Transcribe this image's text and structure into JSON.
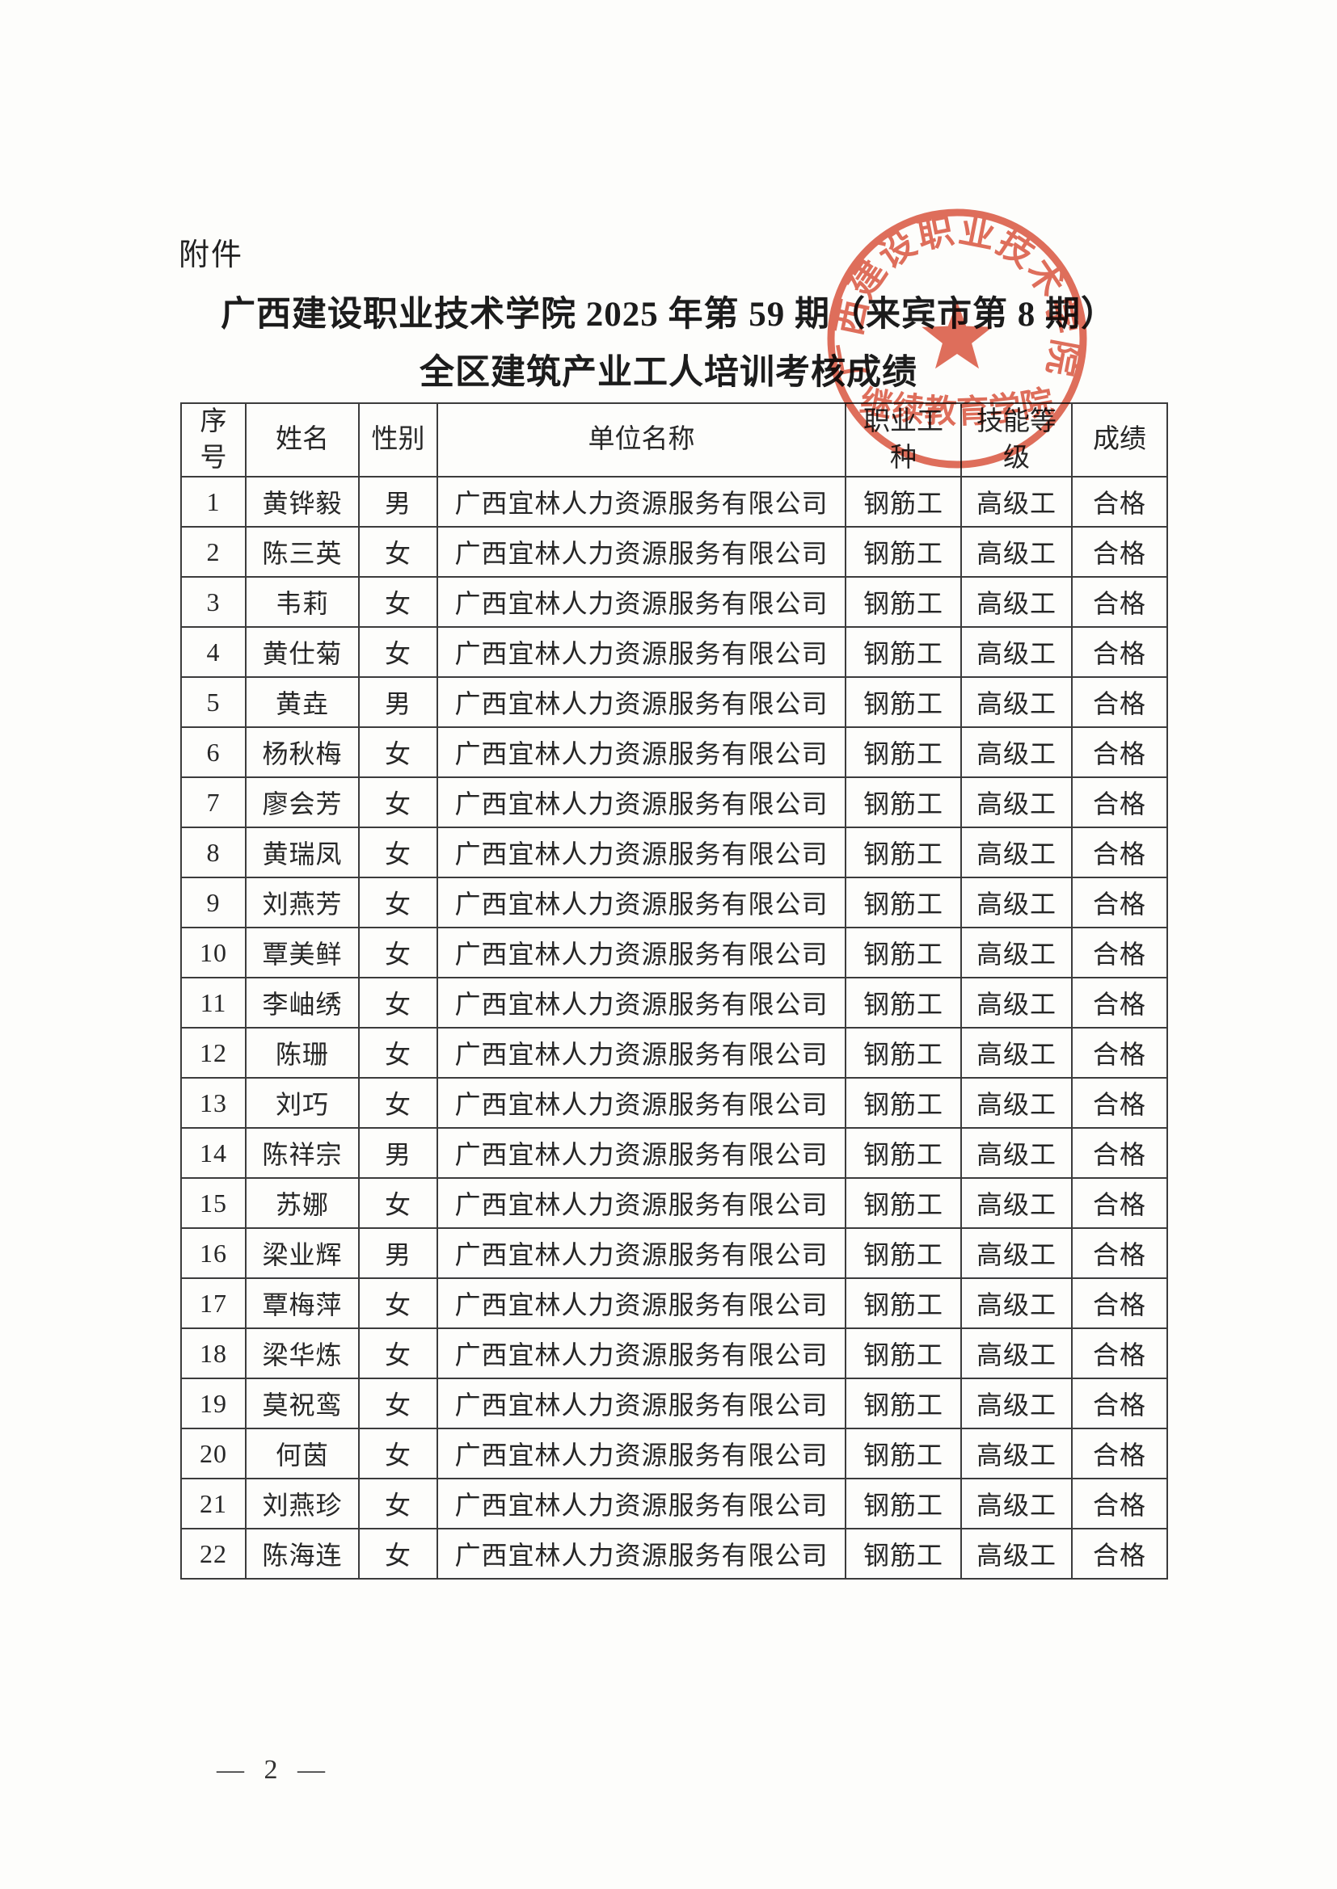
{
  "page": {
    "attachment_label": "附件",
    "title_line1": "广西建设职业技术学院 2025 年第 59 期（来宾市第 8 期）",
    "title_line2": "全区建筑产业工人培训考核成绩",
    "page_number": "— 2 —"
  },
  "stamp": {
    "ring_text": "广西建设职业技术学院",
    "bottom_text": "继续教育学院",
    "color": "#d94f38"
  },
  "table": {
    "headers": [
      "序\n号",
      "姓名",
      "性别",
      "单位名称",
      "职业工\n种",
      "技能等\n级",
      "成绩"
    ],
    "rows": [
      [
        "1",
        "黄铧毅",
        "男",
        "广西宜林人力资源服务有限公司",
        "钢筋工",
        "高级工",
        "合格"
      ],
      [
        "2",
        "陈三英",
        "女",
        "广西宜林人力资源服务有限公司",
        "钢筋工",
        "高级工",
        "合格"
      ],
      [
        "3",
        "韦莉",
        "女",
        "广西宜林人力资源服务有限公司",
        "钢筋工",
        "高级工",
        "合格"
      ],
      [
        "4",
        "黄仕菊",
        "女",
        "广西宜林人力资源服务有限公司",
        "钢筋工",
        "高级工",
        "合格"
      ],
      [
        "5",
        "黄垚",
        "男",
        "广西宜林人力资源服务有限公司",
        "钢筋工",
        "高级工",
        "合格"
      ],
      [
        "6",
        "杨秋梅",
        "女",
        "广西宜林人力资源服务有限公司",
        "钢筋工",
        "高级工",
        "合格"
      ],
      [
        "7",
        "廖会芳",
        "女",
        "广西宜林人力资源服务有限公司",
        "钢筋工",
        "高级工",
        "合格"
      ],
      [
        "8",
        "黄瑞凤",
        "女",
        "广西宜林人力资源服务有限公司",
        "钢筋工",
        "高级工",
        "合格"
      ],
      [
        "9",
        "刘燕芳",
        "女",
        "广西宜林人力资源服务有限公司",
        "钢筋工",
        "高级工",
        "合格"
      ],
      [
        "10",
        "覃美鲜",
        "女",
        "广西宜林人力资源服务有限公司",
        "钢筋工",
        "高级工",
        "合格"
      ],
      [
        "11",
        "李岫绣",
        "女",
        "广西宜林人力资源服务有限公司",
        "钢筋工",
        "高级工",
        "合格"
      ],
      [
        "12",
        "陈珊",
        "女",
        "广西宜林人力资源服务有限公司",
        "钢筋工",
        "高级工",
        "合格"
      ],
      [
        "13",
        "刘巧",
        "女",
        "广西宜林人力资源服务有限公司",
        "钢筋工",
        "高级工",
        "合格"
      ],
      [
        "14",
        "陈祥宗",
        "男",
        "广西宜林人力资源服务有限公司",
        "钢筋工",
        "高级工",
        "合格"
      ],
      [
        "15",
        "苏娜",
        "女",
        "广西宜林人力资源服务有限公司",
        "钢筋工",
        "高级工",
        "合格"
      ],
      [
        "16",
        "梁业辉",
        "男",
        "广西宜林人力资源服务有限公司",
        "钢筋工",
        "高级工",
        "合格"
      ],
      [
        "17",
        "覃梅萍",
        "女",
        "广西宜林人力资源服务有限公司",
        "钢筋工",
        "高级工",
        "合格"
      ],
      [
        "18",
        "梁华炼",
        "女",
        "广西宜林人力资源服务有限公司",
        "钢筋工",
        "高级工",
        "合格"
      ],
      [
        "19",
        "莫祝鸾",
        "女",
        "广西宜林人力资源服务有限公司",
        "钢筋工",
        "高级工",
        "合格"
      ],
      [
        "20",
        "何茵",
        "女",
        "广西宜林人力资源服务有限公司",
        "钢筋工",
        "高级工",
        "合格"
      ],
      [
        "21",
        "刘燕珍",
        "女",
        "广西宜林人力资源服务有限公司",
        "钢筋工",
        "高级工",
        "合格"
      ],
      [
        "22",
        "陈海连",
        "女",
        "广西宜林人力资源服务有限公司",
        "钢筋工",
        "高级工",
        "合格"
      ]
    ]
  }
}
